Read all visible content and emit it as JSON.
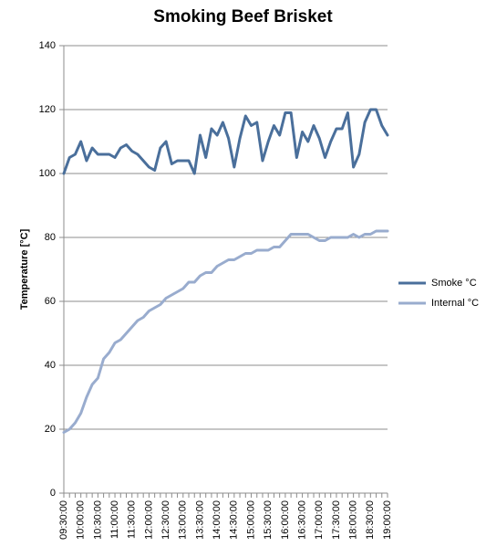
{
  "chart_data": {
    "type": "line",
    "title": "Smoking Beef Brisket",
    "xlabel": "",
    "ylabel": "Temperature [°C]",
    "ylim": [
      0,
      140
    ],
    "yticks": [
      0,
      20,
      40,
      60,
      80,
      100,
      120,
      140
    ],
    "grid": true,
    "legend": "right",
    "categories": [
      "09:30:00",
      "09:40:00",
      "09:50:00",
      "10:00:00",
      "10:10:00",
      "10:20:00",
      "10:30:00",
      "10:40:00",
      "10:50:00",
      "11:00:00",
      "11:10:00",
      "11:20:00",
      "11:30:00",
      "11:40:00",
      "11:50:00",
      "12:00:00",
      "12:10:00",
      "12:20:00",
      "12:30:00",
      "12:40:00",
      "12:50:00",
      "13:00:00",
      "13:10:00",
      "13:20:00",
      "13:30:00",
      "13:40:00",
      "13:50:00",
      "14:00:00",
      "14:10:00",
      "14:20:00",
      "14:30:00",
      "14:40:00",
      "14:50:00",
      "15:00:00",
      "15:10:00",
      "15:20:00",
      "15:30:00",
      "15:40:00",
      "15:50:00",
      "16:00:00",
      "16:10:00",
      "16:20:00",
      "16:30:00",
      "16:40:00",
      "16:50:00",
      "17:00:00",
      "17:10:00",
      "17:20:00",
      "17:30:00",
      "17:40:00",
      "17:50:00",
      "18:00:00",
      "18:10:00",
      "18:20:00",
      "18:30:00",
      "18:40:00",
      "18:50:00",
      "19:00:00"
    ],
    "tick_labels": [
      "09:30:00",
      "10:00:00",
      "10:30:00",
      "11:00:00",
      "11:30:00",
      "12:00:00",
      "12:30:00",
      "13:00:00",
      "13:30:00",
      "14:00:00",
      "14:30:00",
      "15:00:00",
      "15:30:00",
      "16:00:00",
      "16:30:00",
      "17:00:00",
      "17:30:00",
      "18:00:00",
      "18:30:00",
      "19:00:00"
    ],
    "series": [
      {
        "name": "Smoke °C",
        "color": "#4a6f9b",
        "values": [
          100,
          105,
          106,
          110,
          104,
          108,
          106,
          106,
          106,
          105,
          108,
          109,
          107,
          106,
          104,
          102,
          101,
          108,
          110,
          103,
          104,
          104,
          104,
          100,
          112,
          105,
          114,
          112,
          116,
          111,
          102,
          111,
          118,
          115,
          116,
          104,
          110,
          115,
          112,
          119,
          119,
          105,
          113,
          110,
          115,
          111,
          105,
          110,
          114,
          114,
          119,
          102,
          106,
          116,
          120,
          120,
          115,
          112
        ]
      },
      {
        "name": "Internal °C",
        "color": "#99acce",
        "values": [
          19,
          20,
          22,
          25,
          30,
          34,
          36,
          42,
          44,
          47,
          48,
          50,
          52,
          54,
          55,
          57,
          58,
          59,
          61,
          62,
          63,
          64,
          66,
          66,
          68,
          69,
          69,
          71,
          72,
          73,
          73,
          74,
          75,
          75,
          76,
          76,
          76,
          77,
          77,
          79,
          81,
          81,
          81,
          81,
          80,
          79,
          79,
          80,
          80,
          80,
          80,
          81,
          80,
          81,
          81,
          82,
          82,
          82
        ]
      }
    ]
  }
}
